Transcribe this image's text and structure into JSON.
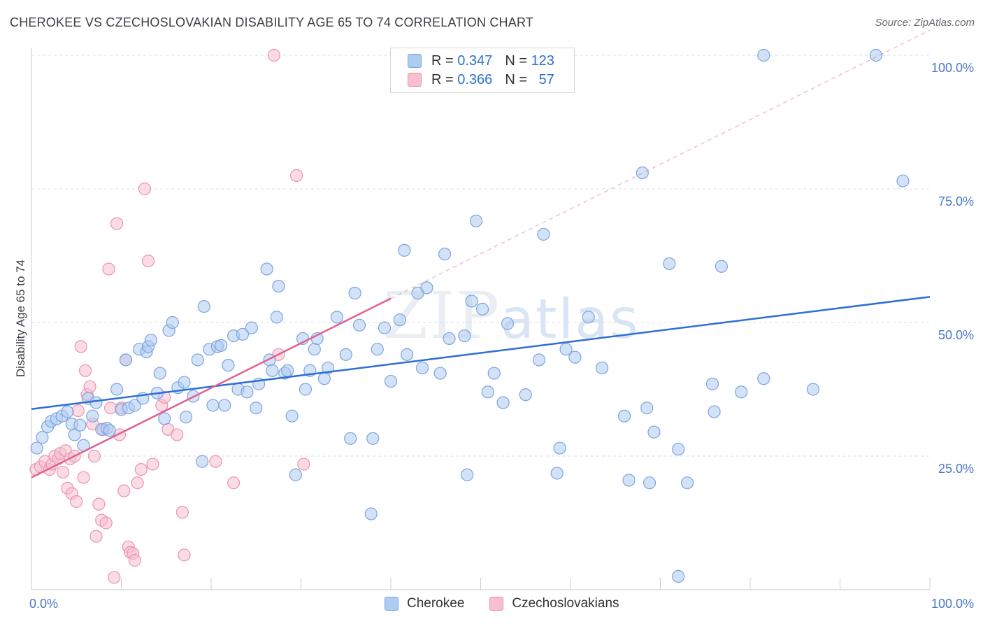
{
  "title": "CHEROKEE VS CZECHOSLOVAKIAN DISABILITY AGE 65 TO 74 CORRELATION CHART",
  "source": "Source: ZipAtlas.com",
  "watermark": {
    "zip": "ZIP",
    "atlas": "atlas"
  },
  "legend": {
    "cherokee": {
      "r_label": "R =",
      "r_value": "0.347",
      "n_label": "N =",
      "n_value": "123"
    },
    "czech": {
      "r_label": "R =",
      "r_value": "0.366",
      "n_label": "N =",
      "n_value": "57"
    }
  },
  "colors": {
    "cherokee_fill": "#aecbf0",
    "cherokee_stroke": "#7aa6e0",
    "cherokee_line": "#2e6fd1",
    "czech_fill": "#f7bfd0",
    "czech_stroke": "#ec93b3",
    "czech_line": "#e0608e",
    "tick": "#4a78c8",
    "grid": "#d9dde3"
  },
  "chart_data": {
    "type": "scatter",
    "title": "CHEROKEE VS CZECHOSLOVAKIAN DISABILITY AGE 65 TO 74 CORRELATION CHART",
    "xlabel": "",
    "ylabel": "Disability Age 65 to 74",
    "xlim": [
      0,
      100
    ],
    "ylim": [
      0,
      100
    ],
    "x_tick_labels": [
      "0.0%",
      "100.0%"
    ],
    "y_tick_labels": [
      "25.0%",
      "50.0%",
      "75.0%",
      "100.0%"
    ],
    "y_ticks": [
      25,
      50,
      75,
      100
    ],
    "grid": true,
    "legend_position": "top-center",
    "series": [
      {
        "name": "Cherokee",
        "r": 0.347,
        "n": 123,
        "trend": {
          "x": [
            0,
            100
          ],
          "y": [
            33.8,
            54.8
          ]
        },
        "points": [
          [
            0.6,
            26.5
          ],
          [
            1.2,
            28.5
          ],
          [
            1.8,
            30.5
          ],
          [
            2.2,
            31.5
          ],
          [
            2.8,
            32
          ],
          [
            3.4,
            32.5
          ],
          [
            4,
            33.3
          ],
          [
            4.5,
            31
          ],
          [
            4.8,
            29
          ],
          [
            5.4,
            30.8
          ],
          [
            5.8,
            27
          ],
          [
            6.3,
            35.8
          ],
          [
            6.8,
            32.5
          ],
          [
            7.2,
            35
          ],
          [
            7.8,
            30
          ],
          [
            8.4,
            30.2
          ],
          [
            8.7,
            29.8
          ],
          [
            9.5,
            37.5
          ],
          [
            10,
            33.7
          ],
          [
            10.5,
            43
          ],
          [
            10.8,
            34
          ],
          [
            11.5,
            34.5
          ],
          [
            12,
            45
          ],
          [
            12.4,
            35.8
          ],
          [
            12.8,
            44.5
          ],
          [
            13,
            45.5
          ],
          [
            13.3,
            46.7
          ],
          [
            14,
            36.8
          ],
          [
            14.3,
            40.5
          ],
          [
            14.8,
            32
          ],
          [
            15.3,
            48.5
          ],
          [
            15.7,
            50
          ],
          [
            16.3,
            37.8
          ],
          [
            17,
            38.8
          ],
          [
            17.2,
            32.3
          ],
          [
            18,
            36.2
          ],
          [
            18.5,
            43
          ],
          [
            19,
            24
          ],
          [
            19.2,
            53
          ],
          [
            19.8,
            45
          ],
          [
            20.2,
            34.5
          ],
          [
            20.7,
            45.5
          ],
          [
            21.1,
            45.7
          ],
          [
            21.5,
            34.5
          ],
          [
            21.9,
            42
          ],
          [
            22.5,
            47.5
          ],
          [
            23,
            37.5
          ],
          [
            23.5,
            47.8
          ],
          [
            24,
            37
          ],
          [
            24.5,
            49
          ],
          [
            25,
            34
          ],
          [
            25.3,
            38.5
          ],
          [
            26.2,
            60
          ],
          [
            26.5,
            43
          ],
          [
            26.8,
            41
          ],
          [
            27.3,
            51
          ],
          [
            27.5,
            56.8
          ],
          [
            28.2,
            40.5
          ],
          [
            28.5,
            41
          ],
          [
            29,
            32.5
          ],
          [
            29.4,
            21.5
          ],
          [
            30.2,
            47
          ],
          [
            30.5,
            37.5
          ],
          [
            31,
            41
          ],
          [
            31.5,
            45
          ],
          [
            31.8,
            47
          ],
          [
            32.6,
            39.5
          ],
          [
            33,
            41.5
          ],
          [
            34,
            51
          ],
          [
            35,
            44
          ],
          [
            35.5,
            28.3
          ],
          [
            36,
            55.5
          ],
          [
            36.5,
            49.5
          ],
          [
            37.8,
            14.2
          ],
          [
            38,
            28.3
          ],
          [
            38.5,
            45
          ],
          [
            39.3,
            49
          ],
          [
            40,
            39
          ],
          [
            41,
            50.5
          ],
          [
            41.5,
            63.5
          ],
          [
            41.8,
            44
          ],
          [
            43,
            55.5
          ],
          [
            43.5,
            41.5
          ],
          [
            44,
            56.5
          ],
          [
            45.5,
            40.5
          ],
          [
            46,
            62.8
          ],
          [
            46.5,
            47
          ],
          [
            48.2,
            47.5
          ],
          [
            48.5,
            21.5
          ],
          [
            49,
            54
          ],
          [
            49.5,
            69
          ],
          [
            50.2,
            52.5
          ],
          [
            50.8,
            37
          ],
          [
            51.5,
            40.5
          ],
          [
            52.5,
            35
          ],
          [
            53,
            49.8
          ],
          [
            55,
            36.5
          ],
          [
            56.5,
            43
          ],
          [
            57,
            66.5
          ],
          [
            58.5,
            21.8
          ],
          [
            58.8,
            26.5
          ],
          [
            59.5,
            45
          ],
          [
            60.5,
            43.5
          ],
          [
            62,
            51
          ],
          [
            63.5,
            41.5
          ],
          [
            66,
            32.5
          ],
          [
            66.5,
            20.5
          ],
          [
            68,
            78
          ],
          [
            68.8,
            20
          ],
          [
            68.5,
            34
          ],
          [
            69.3,
            29.5
          ],
          [
            71,
            61
          ],
          [
            72,
            26.3
          ],
          [
            72,
            2.5
          ],
          [
            73,
            20
          ],
          [
            75.8,
            38.5
          ],
          [
            76,
            33.3
          ],
          [
            76.8,
            60.5
          ],
          [
            79,
            37
          ],
          [
            81.5,
            39.5
          ],
          [
            81.5,
            100
          ],
          [
            87,
            37.5
          ],
          [
            94,
            100
          ],
          [
            97,
            76.5
          ]
        ]
      },
      {
        "name": "Czechoslovakians",
        "r": 0.366,
        "n": 57,
        "trend": {
          "x": [
            0,
            40
          ],
          "y": [
            21,
            54.5
          ],
          "dashed_extension": {
            "x": [
              40,
              100
            ],
            "y": [
              54.5,
              104.7
            ]
          }
        },
        "points": [
          [
            0.5,
            22.5
          ],
          [
            1,
            23
          ],
          [
            1.5,
            24
          ],
          [
            2,
            22.5
          ],
          [
            2.3,
            23.5
          ],
          [
            2.6,
            25
          ],
          [
            3,
            24.5
          ],
          [
            3.2,
            25.5
          ],
          [
            3.5,
            22
          ],
          [
            3.8,
            26
          ],
          [
            4,
            19
          ],
          [
            4.3,
            24.5
          ],
          [
            4.5,
            18
          ],
          [
            4.8,
            25
          ],
          [
            5,
            16.5
          ],
          [
            5.2,
            33.5
          ],
          [
            5.5,
            45.5
          ],
          [
            5.8,
            21
          ],
          [
            6,
            41
          ],
          [
            6.2,
            36.5
          ],
          [
            6.5,
            38
          ],
          [
            6.8,
            31
          ],
          [
            7,
            25
          ],
          [
            7.2,
            10
          ],
          [
            7.5,
            16
          ],
          [
            7.8,
            13
          ],
          [
            8,
            30
          ],
          [
            8.3,
            12.5
          ],
          [
            8.6,
            60
          ],
          [
            8.8,
            34
          ],
          [
            9.2,
            2.3
          ],
          [
            9.5,
            68.5
          ],
          [
            9.8,
            29
          ],
          [
            10,
            34
          ],
          [
            10.3,
            18.5
          ],
          [
            10.5,
            43
          ],
          [
            10.8,
            8
          ],
          [
            11,
            7
          ],
          [
            11.3,
            6.8
          ],
          [
            11.5,
            5.5
          ],
          [
            11.8,
            20
          ],
          [
            12.2,
            22.5
          ],
          [
            12.6,
            75
          ],
          [
            13,
            61.5
          ],
          [
            13.5,
            23.5
          ],
          [
            14.5,
            34.5
          ],
          [
            14.8,
            36
          ],
          [
            15.2,
            30
          ],
          [
            16.2,
            29
          ],
          [
            16.8,
            14.5
          ],
          [
            17,
            6.5
          ],
          [
            20.5,
            24
          ],
          [
            22.5,
            20
          ],
          [
            27,
            100
          ],
          [
            27.5,
            44
          ],
          [
            29.5,
            77.5
          ],
          [
            30.3,
            23.5
          ]
        ]
      }
    ]
  }
}
